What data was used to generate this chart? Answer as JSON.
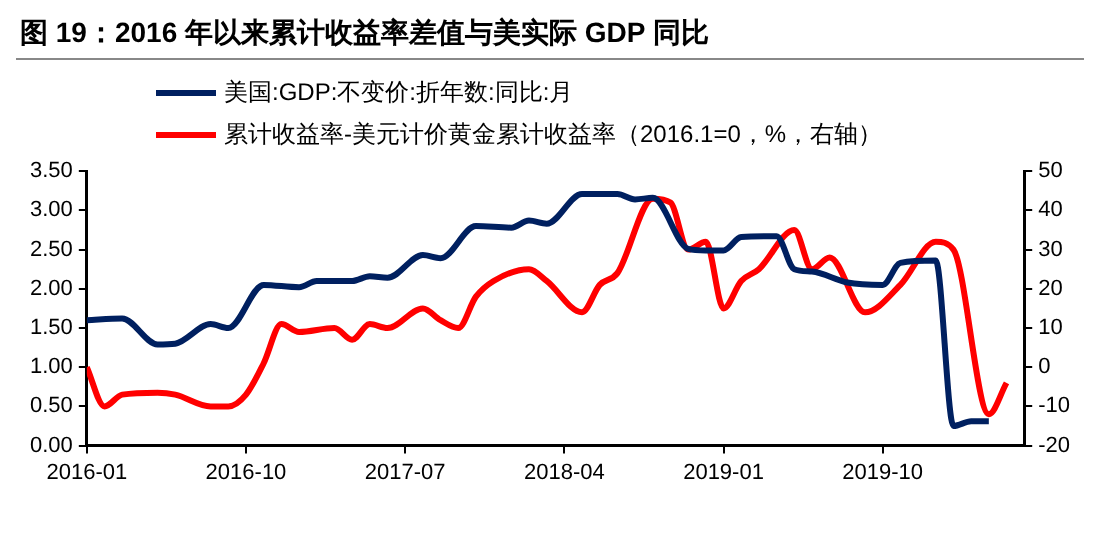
{
  "chart_data": {
    "type": "line",
    "title": "图 19：2016 年以来累计收益率差值与美实际 GDP 同比",
    "xlim": [
      "2016-01",
      "2020-06"
    ],
    "xticks": [
      "2016-01",
      "2016-10",
      "2017-07",
      "2018-04",
      "2019-01",
      "2019-10"
    ],
    "ylim": [
      0,
      3.5
    ],
    "yticks": [
      {
        "value": 0,
        "label": "0.00"
      },
      {
        "value": 0.5,
        "label": "0.50"
      },
      {
        "value": 1,
        "label": "1.00"
      },
      {
        "value": 1.5,
        "label": "1.50"
      },
      {
        "value": 2,
        "label": "2.00"
      },
      {
        "value": 2.5,
        "label": "2.50"
      },
      {
        "value": 3,
        "label": "3.00"
      },
      {
        "value": 3.5,
        "label": "3.50"
      }
    ],
    "y2lim": [
      -20,
      50
    ],
    "y2ticks": [
      -20,
      -10,
      0,
      10,
      20,
      30,
      40,
      50
    ],
    "grid": false,
    "legend": "top left",
    "marker": "none",
    "line_style": "solid",
    "series": [
      {
        "name": "美国:GDP:不变价:折年数:同比:月",
        "color": "#002060",
        "x": [
          "2016-01",
          "2016-03",
          "2016-05",
          "2016-06",
          "2016-08",
          "2016-09",
          "2016-11",
          "2017-01",
          "2017-02",
          "2017-04",
          "2017-05",
          "2017-06",
          "2017-08",
          "2017-09",
          "2017-11",
          "2018-01",
          "2018-02",
          "2018-03",
          "2018-05",
          "2018-07",
          "2018-08",
          "2018-09",
          "2018-11",
          "2018-12",
          "2019-01",
          "2019-02",
          "2019-04",
          "2019-05",
          "2019-06",
          "2019-08",
          "2019-10",
          "2019-11",
          "2020-01",
          "2020-02",
          "2020-03",
          "2020-04"
        ],
        "values": [
          1.6,
          1.62,
          1.29,
          1.3,
          1.55,
          1.5,
          2.05,
          2.02,
          2.1,
          2.1,
          2.16,
          2.14,
          2.43,
          2.39,
          2.8,
          2.78,
          2.87,
          2.83,
          3.21,
          3.21,
          3.14,
          3.16,
          2.51,
          2.49,
          2.49,
          2.66,
          2.67,
          2.25,
          2.22,
          2.08,
          2.05,
          2.33,
          2.36,
          0.25,
          0.31,
          0.31
        ]
      },
      {
        "name": "累计收益率-美元计价黄金累计收益率（2016.1=0，%，右轴）",
        "color": "#ff0000",
        "axis": "y2",
        "x": [
          "2016-01",
          "2016-02",
          "2016-03",
          "2016-05",
          "2016-06",
          "2016-08",
          "2016-09",
          "2016-10",
          "2016-11",
          "2016-12",
          "2017-01",
          "2017-03",
          "2017-04",
          "2017-05",
          "2017-06",
          "2017-08",
          "2017-09",
          "2017-10",
          "2017-11",
          "2017-12",
          "2018-02",
          "2018-03",
          "2018-05",
          "2018-06",
          "2018-07",
          "2018-09",
          "2018-10",
          "2018-11",
          "2018-12",
          "2019-01",
          "2019-02",
          "2019-03",
          "2019-05",
          "2019-06",
          "2019-07",
          "2019-09",
          "2019-11",
          "2020-01",
          "2020-02",
          "2020-04",
          "2020-05"
        ],
        "values": [
          0,
          -10,
          -7,
          -6.5,
          -7,
          -10,
          -10,
          -7,
          1,
          11,
          9,
          10,
          7,
          11,
          10,
          15,
          12,
          10,
          18,
          22,
          25,
          22,
          14,
          21,
          24,
          43,
          42,
          30,
          32,
          15,
          22,
          25,
          35,
          25,
          28,
          14,
          21,
          32,
          30,
          -12,
          -4
        ]
      }
    ]
  }
}
